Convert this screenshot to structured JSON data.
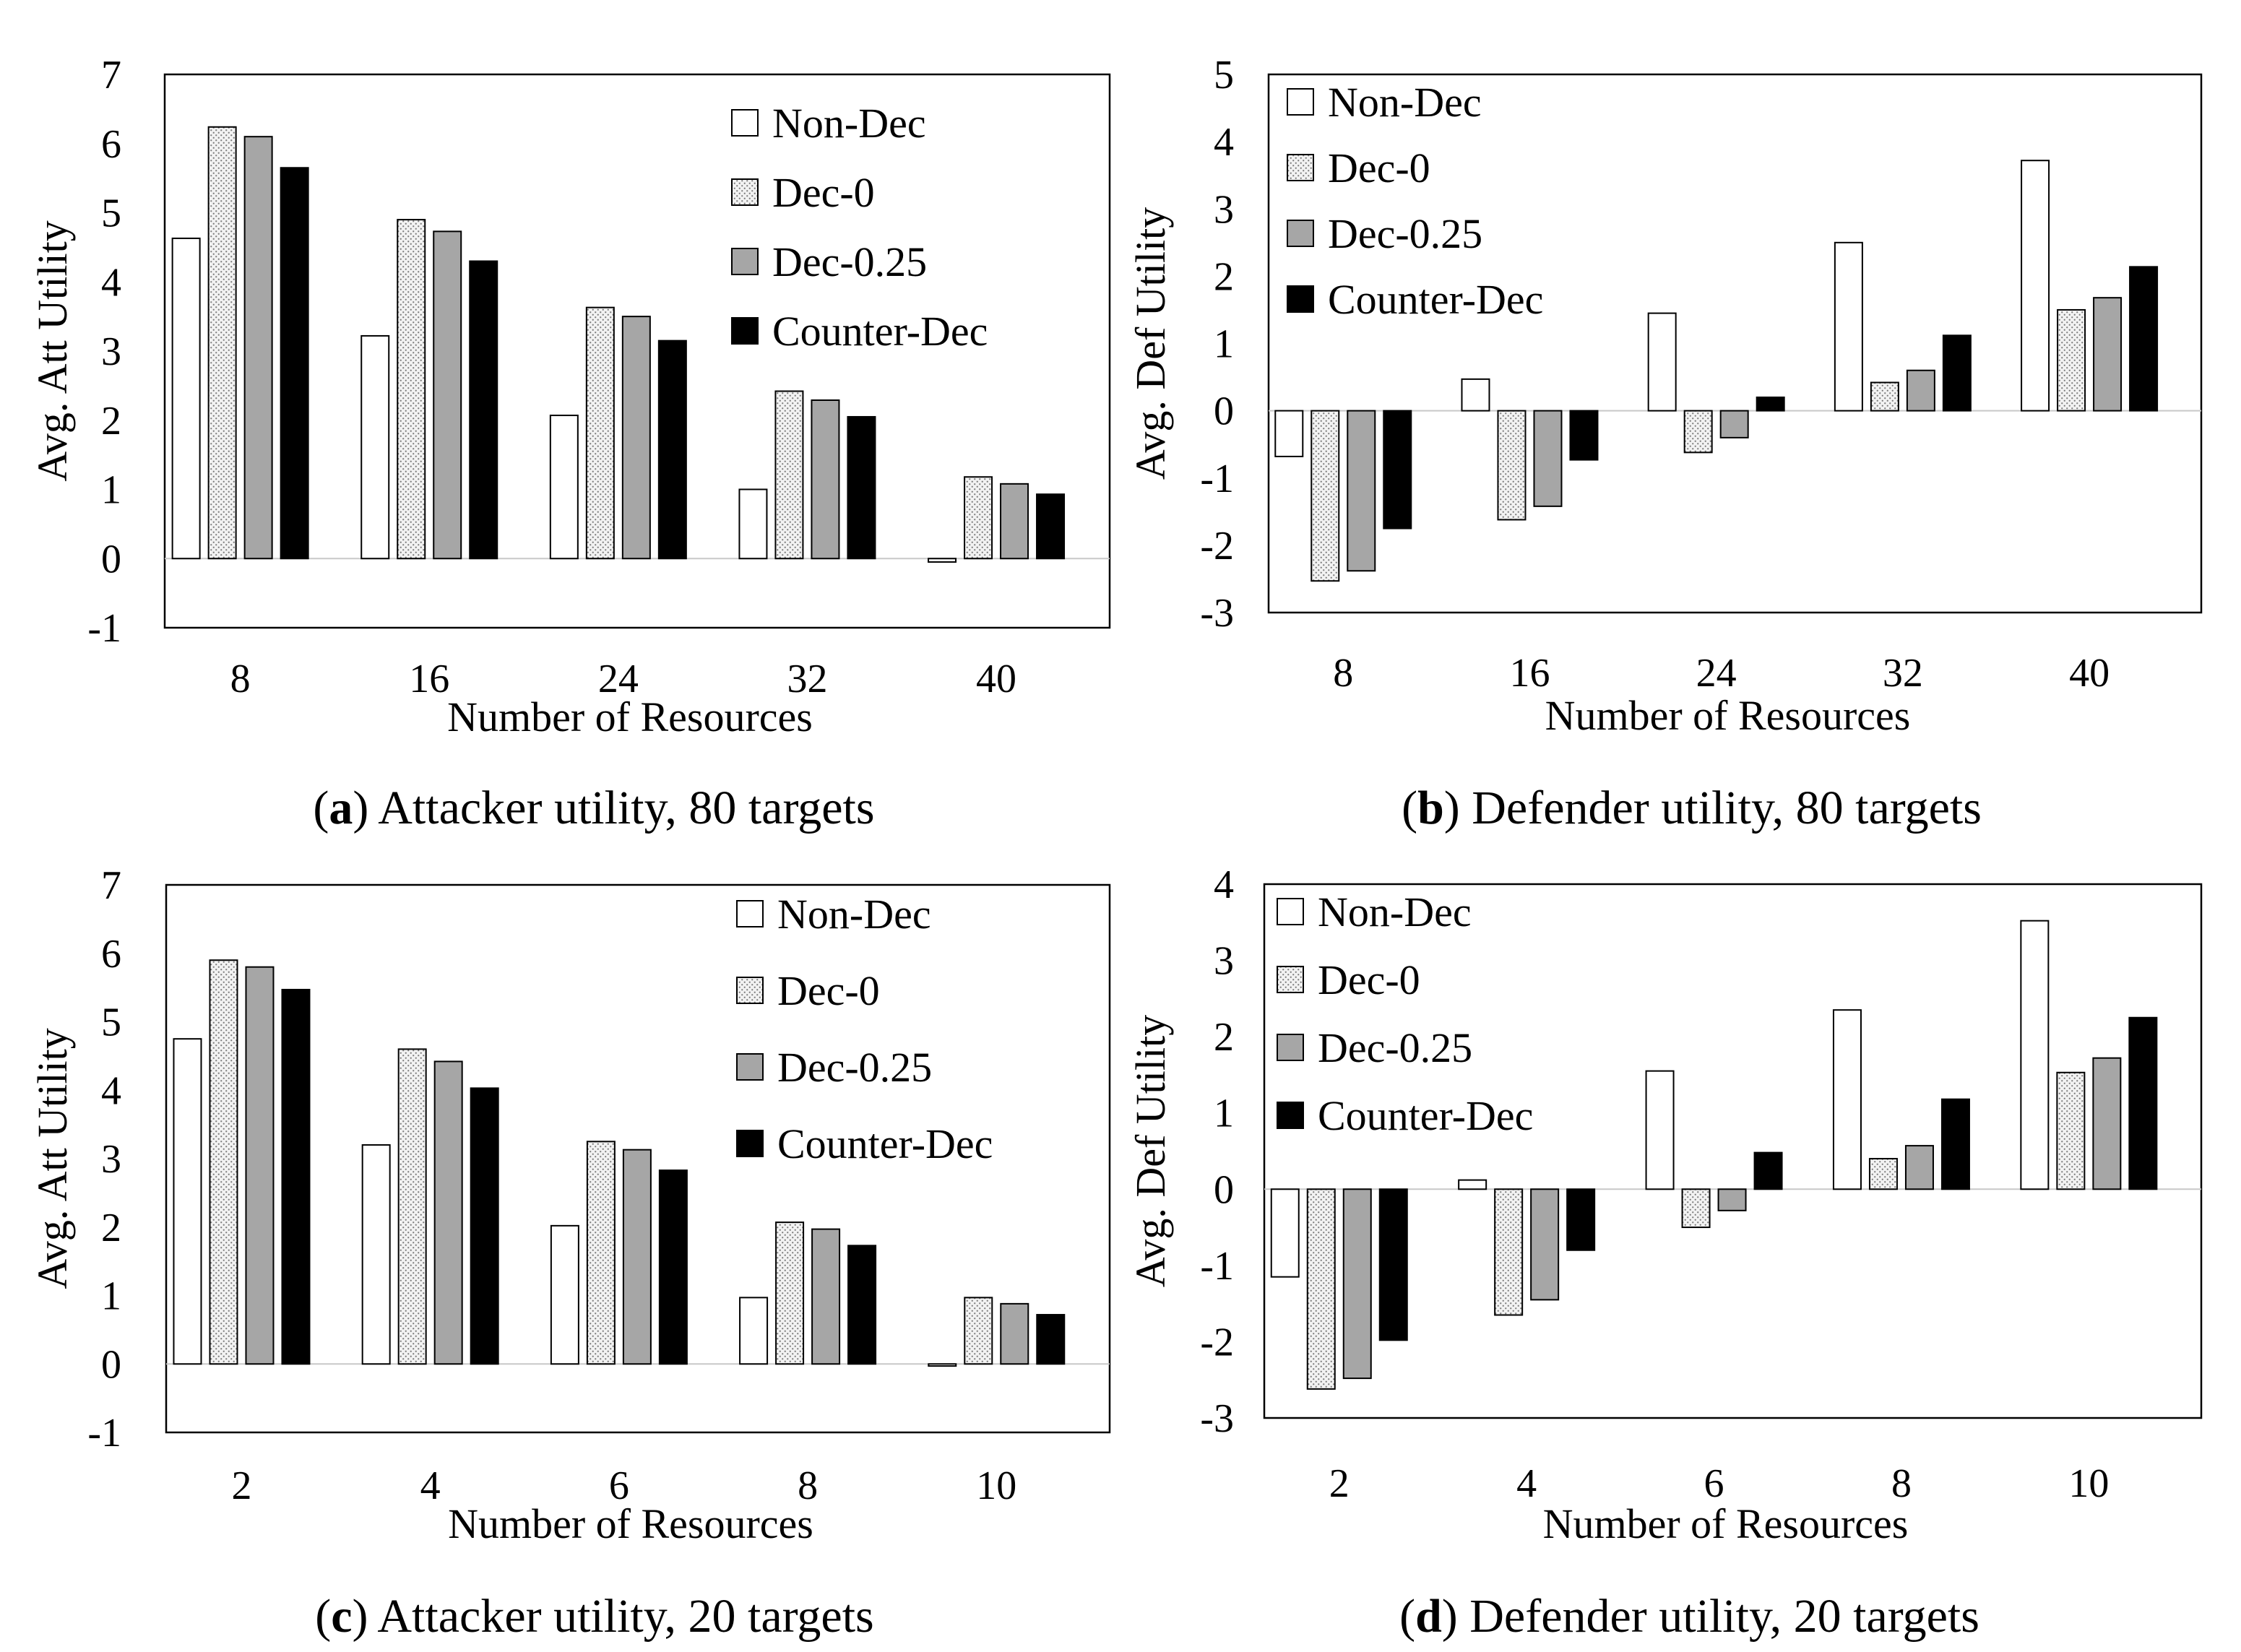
{
  "figure": {
    "colors": {
      "Non-Dec": "#ffffff",
      "Dec-0": "#eeeeee",
      "Dec-0.25": "#a6a6a6",
      "Counter-Dec": "#000000",
      "axis": "#000000",
      "zero_line": "#c8c8c8"
    }
  },
  "chart_data": [
    {
      "id": "a",
      "type": "bar",
      "caption": {
        "letter": "a",
        "open": "(",
        "close": ")",
        "text": " Attacker utility, 80 targets"
      },
      "categories": [
        "8",
        "16",
        "24",
        "32",
        "40"
      ],
      "series": [
        {
          "name": "Non-Dec",
          "values": [
            4.63,
            3.22,
            2.07,
            1.0,
            -0.05
          ]
        },
        {
          "name": "Dec-0",
          "values": [
            6.24,
            4.9,
            3.63,
            2.42,
            1.18
          ]
        },
        {
          "name": "Dec-0.25",
          "values": [
            6.1,
            4.73,
            3.5,
            2.29,
            1.08
          ]
        },
        {
          "name": "Counter-Dec",
          "values": [
            5.65,
            4.3,
            3.15,
            2.05,
            0.93
          ]
        }
      ],
      "xlabel": "Number of Resources",
      "ylabel": "Avg. Att Utility",
      "ylim": [
        -1,
        7
      ],
      "yticks": [
        "-1",
        "0",
        "1",
        "2",
        "3",
        "4",
        "5",
        "6",
        "7"
      ],
      "legend": "top-right",
      "grid": false
    },
    {
      "id": "b",
      "type": "bar",
      "caption": {
        "letter": "b",
        "open": "(",
        "close": ")",
        "text": " Defender utility, 80 targets"
      },
      "categories": [
        "8",
        "16",
        "24",
        "32",
        "40"
      ],
      "series": [
        {
          "name": "Non-Dec",
          "values": [
            -0.68,
            0.47,
            1.45,
            2.5,
            3.72
          ]
        },
        {
          "name": "Dec-0",
          "values": [
            -2.53,
            -1.62,
            -0.62,
            0.42,
            1.5
          ]
        },
        {
          "name": "Dec-0.25",
          "values": [
            -2.38,
            -1.42,
            -0.4,
            0.6,
            1.68
          ]
        },
        {
          "name": "Counter-Dec",
          "values": [
            -1.75,
            -0.73,
            0.2,
            1.12,
            2.14
          ]
        }
      ],
      "xlabel": "Number of Resources",
      "ylabel": "Avg.  Def Utility",
      "ylim": [
        -3,
        5
      ],
      "yticks": [
        "-3",
        "-2",
        "-1",
        "0",
        "1",
        "2",
        "3",
        "4",
        "5"
      ],
      "legend": "top-left",
      "grid": false
    },
    {
      "id": "c",
      "type": "bar",
      "caption": {
        "letter": "c",
        "open": "(",
        "close": ")",
        "text": " Attacker utility, 20 targets"
      },
      "categories": [
        "2",
        "4",
        "6",
        "8",
        "10"
      ],
      "series": [
        {
          "name": "Non-Dec",
          "values": [
            4.75,
            3.2,
            2.02,
            0.97,
            -0.03
          ]
        },
        {
          "name": "Dec-0",
          "values": [
            5.9,
            4.6,
            3.25,
            2.07,
            0.97
          ]
        },
        {
          "name": "Dec-0.25",
          "values": [
            5.8,
            4.42,
            3.13,
            1.97,
            0.88
          ]
        },
        {
          "name": "Counter-Dec",
          "values": [
            5.47,
            4.03,
            2.83,
            1.73,
            0.72
          ]
        }
      ],
      "xlabel": "Number of Resources",
      "ylabel": "Avg. Att Utility",
      "ylim": [
        -1,
        7
      ],
      "yticks": [
        "-1",
        "0",
        "1",
        "2",
        "3",
        "4",
        "5",
        "6",
        "7"
      ],
      "legend": "top-right",
      "grid": false
    },
    {
      "id": "d",
      "type": "bar",
      "caption": {
        "letter": "d",
        "open": "(",
        "close": ")",
        "text": " Defender utility, 20 targets"
      },
      "categories": [
        "2",
        "4",
        "6",
        "8",
        "10"
      ],
      "series": [
        {
          "name": "Non-Dec",
          "values": [
            -1.15,
            0.12,
            1.55,
            2.35,
            3.52
          ]
        },
        {
          "name": "Dec-0",
          "values": [
            -2.62,
            -1.65,
            -0.5,
            0.4,
            1.53
          ]
        },
        {
          "name": "Dec-0.25",
          "values": [
            -2.48,
            -1.45,
            -0.28,
            0.57,
            1.72
          ]
        },
        {
          "name": "Counter-Dec",
          "values": [
            -1.98,
            -0.8,
            0.48,
            1.18,
            2.25
          ]
        }
      ],
      "xlabel": "Number of Resources",
      "ylabel": "Avg.  Def Utility",
      "ylim": [
        -3,
        4
      ],
      "yticks": [
        "-3",
        "-2",
        "-1",
        "0",
        "1",
        "2",
        "3",
        "4"
      ],
      "legend": "top-left",
      "grid": false
    }
  ]
}
